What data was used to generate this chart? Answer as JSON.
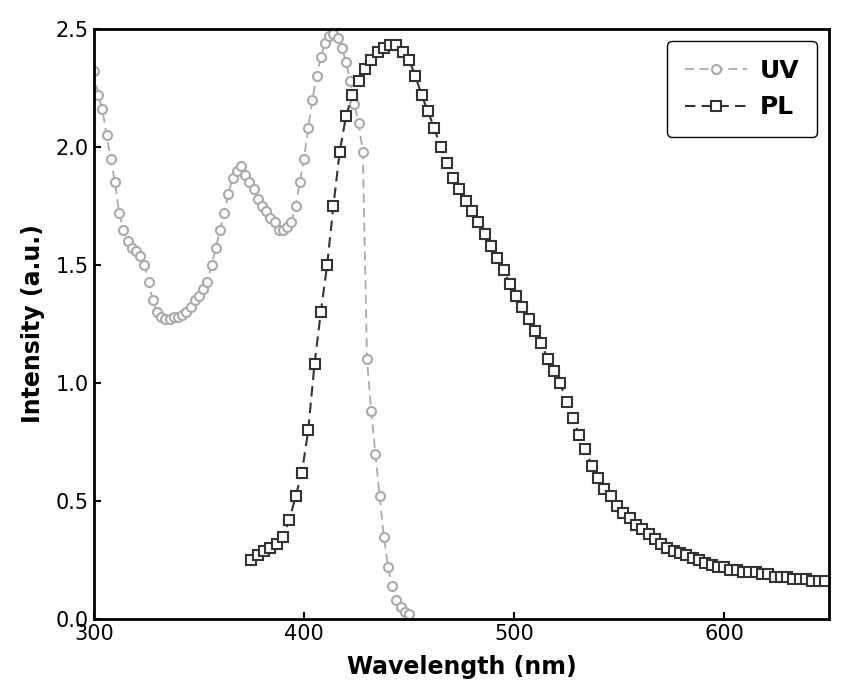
{
  "uv_x": [
    300,
    302,
    304,
    306,
    308,
    310,
    312,
    314,
    316,
    318,
    320,
    322,
    324,
    326,
    328,
    330,
    332,
    334,
    336,
    338,
    340,
    342,
    344,
    346,
    348,
    350,
    352,
    354,
    356,
    358,
    360,
    362,
    364,
    366,
    368,
    370,
    372,
    374,
    376,
    378,
    380,
    382,
    384,
    386,
    388,
    390,
    392,
    394,
    396,
    398,
    400,
    402,
    404,
    406,
    408,
    410,
    412,
    414,
    416,
    418,
    420,
    422,
    424,
    426,
    428,
    430,
    432,
    434,
    436,
    438,
    440,
    442,
    444,
    446,
    448,
    450
  ],
  "uv_y": [
    2.32,
    2.22,
    2.16,
    2.05,
    1.95,
    1.85,
    1.72,
    1.65,
    1.6,
    1.57,
    1.56,
    1.54,
    1.5,
    1.43,
    1.35,
    1.3,
    1.28,
    1.27,
    1.27,
    1.28,
    1.28,
    1.29,
    1.3,
    1.32,
    1.35,
    1.37,
    1.4,
    1.43,
    1.5,
    1.57,
    1.65,
    1.72,
    1.8,
    1.87,
    1.9,
    1.92,
    1.88,
    1.85,
    1.82,
    1.78,
    1.75,
    1.73,
    1.7,
    1.68,
    1.65,
    1.65,
    1.66,
    1.68,
    1.75,
    1.85,
    1.95,
    2.08,
    2.2,
    2.3,
    2.38,
    2.44,
    2.47,
    2.48,
    2.46,
    2.42,
    2.36,
    2.28,
    2.18,
    2.1,
    1.98,
    1.1,
    0.88,
    0.7,
    0.52,
    0.35,
    0.22,
    0.14,
    0.08,
    0.05,
    0.03,
    0.02
  ],
  "pl_x": [
    375,
    378,
    381,
    384,
    387,
    390,
    393,
    396,
    399,
    402,
    405,
    408,
    411,
    414,
    417,
    420,
    423,
    426,
    429,
    432,
    435,
    438,
    441,
    444,
    447,
    450,
    453,
    456,
    459,
    462,
    465,
    468,
    471,
    474,
    477,
    480,
    483,
    486,
    489,
    492,
    495,
    498,
    501,
    504,
    507,
    510,
    513,
    516,
    519,
    522,
    525,
    528,
    531,
    534,
    537,
    540,
    543,
    546,
    549,
    552,
    555,
    558,
    561,
    564,
    567,
    570,
    573,
    576,
    579,
    582,
    585,
    588,
    591,
    594,
    597,
    600,
    603,
    606,
    609,
    612,
    615,
    618,
    621,
    624,
    627,
    630,
    633,
    636,
    639,
    642,
    645,
    648
  ],
  "pl_y": [
    0.25,
    0.27,
    0.29,
    0.3,
    0.32,
    0.35,
    0.42,
    0.52,
    0.62,
    0.8,
    1.08,
    1.3,
    1.5,
    1.75,
    1.98,
    2.13,
    2.22,
    2.28,
    2.33,
    2.37,
    2.4,
    2.42,
    2.43,
    2.43,
    2.4,
    2.37,
    2.3,
    2.22,
    2.15,
    2.08,
    2.0,
    1.93,
    1.87,
    1.82,
    1.77,
    1.73,
    1.68,
    1.63,
    1.58,
    1.53,
    1.48,
    1.42,
    1.37,
    1.32,
    1.27,
    1.22,
    1.17,
    1.1,
    1.05,
    1.0,
    0.92,
    0.85,
    0.78,
    0.72,
    0.65,
    0.6,
    0.55,
    0.52,
    0.48,
    0.45,
    0.43,
    0.4,
    0.38,
    0.36,
    0.34,
    0.32,
    0.3,
    0.29,
    0.28,
    0.27,
    0.26,
    0.25,
    0.24,
    0.23,
    0.22,
    0.22,
    0.21,
    0.21,
    0.2,
    0.2,
    0.2,
    0.19,
    0.19,
    0.18,
    0.18,
    0.18,
    0.17,
    0.17,
    0.17,
    0.16,
    0.16,
    0.16
  ],
  "uv_color": "#aaaaaa",
  "pl_color": "#333333",
  "xlabel": "Wavelength (nm)",
  "ylabel": "Intensity (a.u.)",
  "xlim": [
    300,
    650
  ],
  "ylim": [
    0.0,
    2.5
  ],
  "yticks": [
    0.0,
    0.5,
    1.0,
    1.5,
    2.0,
    2.5
  ],
  "xticks": [
    300,
    400,
    500,
    600
  ],
  "legend_labels": [
    "UV",
    "PL"
  ],
  "background_color": "#ffffff"
}
